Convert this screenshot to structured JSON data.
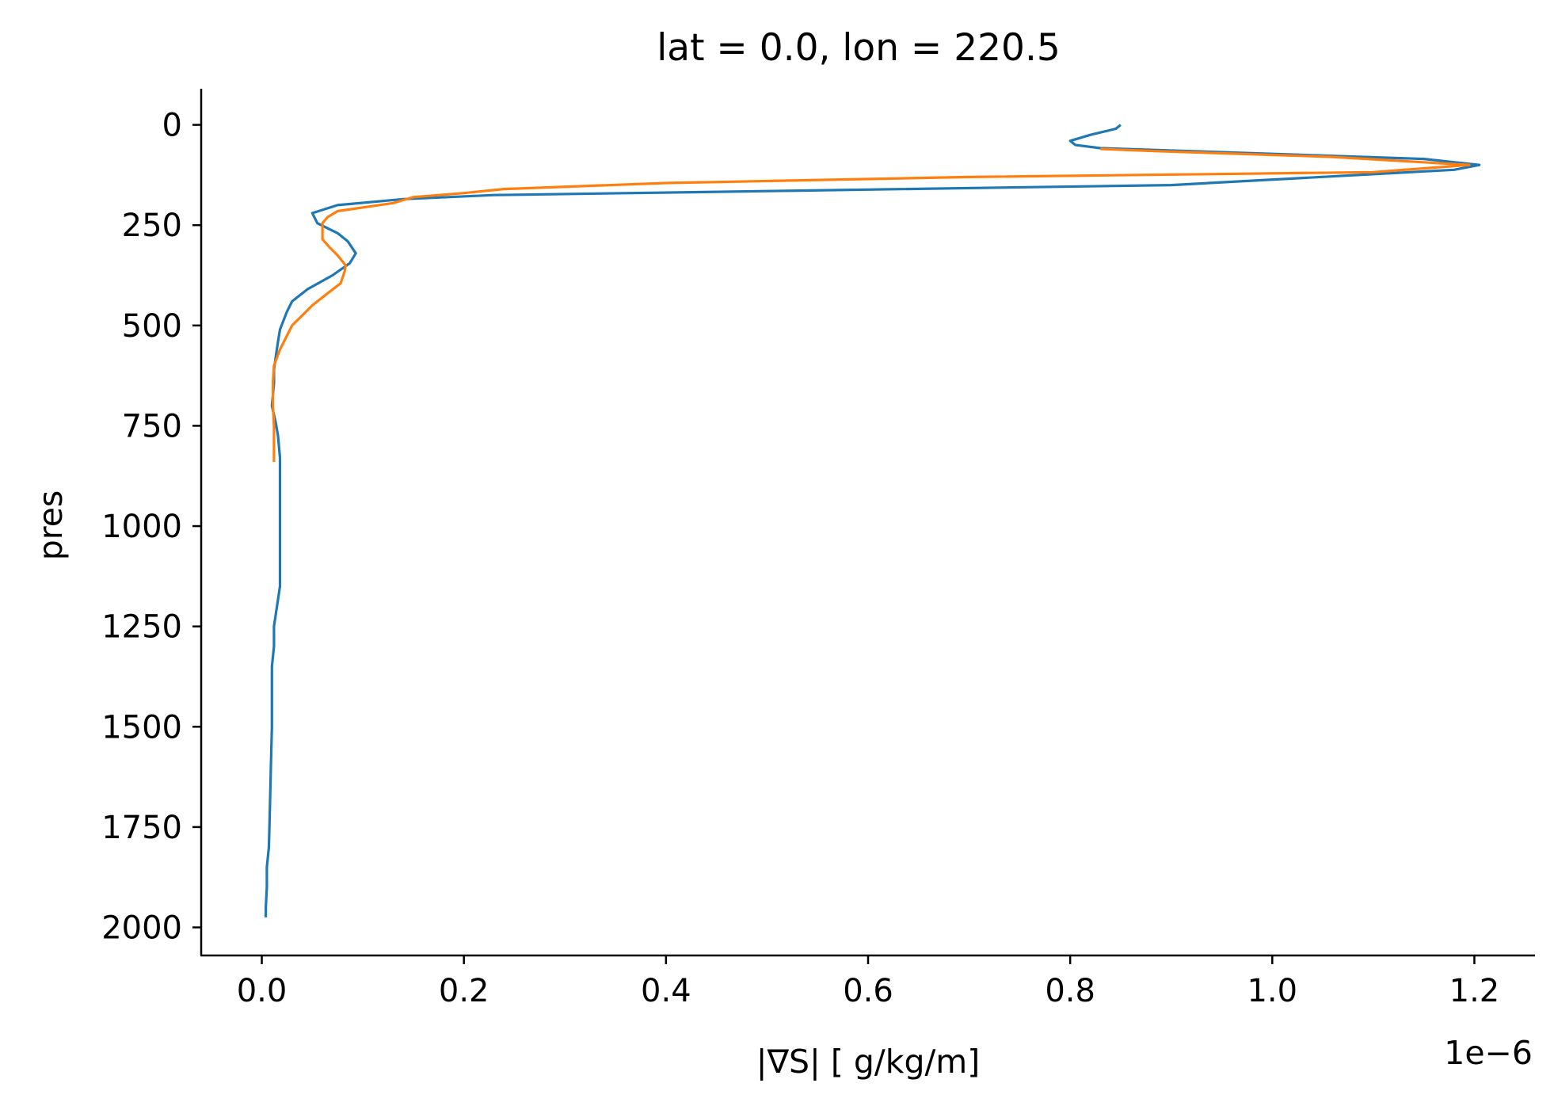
{
  "chart_data": {
    "type": "line",
    "title": "lat = 0.0, lon = 220.5",
    "xlabel": "|∇S| [ g/kg/m]",
    "ylabel": "pres",
    "x_offset_text": "1e−6",
    "x_scale": 1e-06,
    "xlim": [
      -6e-08,
      1.26e-06
    ],
    "ylim": [
      2070,
      -90
    ],
    "y_inverted": true,
    "x_ticks": [
      0.0,
      0.2,
      0.4,
      0.6,
      0.8,
      1.0,
      1.2
    ],
    "x_tick_labels": [
      "0.0",
      "0.2",
      "0.4",
      "0.6",
      "0.8",
      "1.0",
      "1.2"
    ],
    "y_ticks": [
      0,
      250,
      500,
      750,
      1000,
      1250,
      1500,
      1750,
      2000
    ],
    "y_tick_labels": [
      "0",
      "250",
      "500",
      "750",
      "1000",
      "1250",
      "1500",
      "1750",
      "2000"
    ],
    "grid": false,
    "legend": "none",
    "series": [
      {
        "color": "#1f77b4",
        "x": [
          0.85,
          0.845,
          0.82,
          0.8,
          0.805,
          0.83,
          1.15,
          1.205,
          1.18,
          0.9,
          0.5,
          0.23,
          0.14,
          0.075,
          0.05,
          0.055,
          0.075,
          0.085,
          0.093,
          0.087,
          0.07,
          0.045,
          0.03,
          0.025,
          0.018,
          0.016,
          0.014,
          0.012,
          0.012,
          0.01,
          0.014,
          0.016,
          0.018,
          0.018,
          0.018,
          0.018,
          0.018,
          0.012,
          0.012,
          0.01,
          0.01,
          0.01,
          0.009,
          0.008,
          0.007,
          0.005,
          0.005,
          0.004,
          0.004
        ],
        "y": [
          0,
          10,
          25,
          40,
          50,
          58,
          85,
          100,
          112,
          150,
          165,
          175,
          185,
          200,
          220,
          245,
          270,
          290,
          320,
          345,
          375,
          410,
          440,
          465,
          510,
          540,
          575,
          610,
          645,
          700,
          745,
          775,
          830,
          900,
          1000,
          1100,
          1150,
          1250,
          1300,
          1350,
          1400,
          1500,
          1600,
          1700,
          1800,
          1850,
          1900,
          1950,
          1975
        ]
      },
      {
        "color": "#ff7f0e",
        "x": [
          0.83,
          0.88,
          1.06,
          1.195,
          1.1,
          0.7,
          0.4,
          0.24,
          0.2,
          0.15,
          0.13,
          0.075,
          0.065,
          0.06,
          0.06,
          0.067,
          0.075,
          0.083,
          0.082,
          0.078,
          0.065,
          0.05,
          0.038,
          0.03,
          0.025,
          0.018,
          0.012,
          0.011,
          0.011,
          0.012,
          0.012,
          0.012,
          0.012
        ],
        "y": [
          60,
          65,
          80,
          100,
          118,
          130,
          145,
          160,
          170,
          180,
          195,
          215,
          230,
          245,
          285,
          305,
          325,
          350,
          365,
          395,
          420,
          450,
          480,
          500,
          525,
          560,
          600,
          640,
          700,
          750,
          780,
          800,
          840
        ]
      }
    ]
  }
}
